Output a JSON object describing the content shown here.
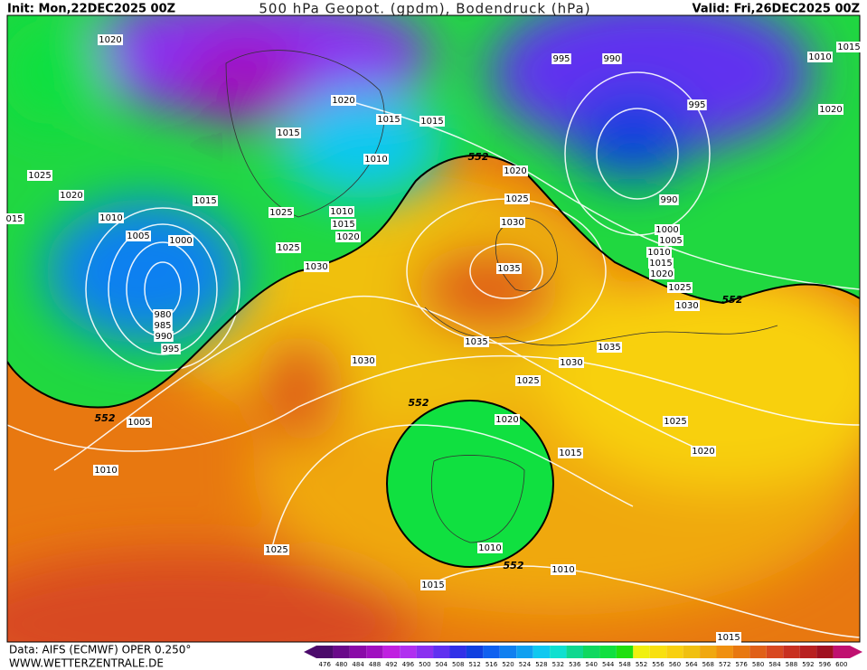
{
  "header": {
    "init": "Init: Mon,22DEC2025 00Z",
    "title": "500 hPa Geopot. (gpdm), Bodendruck (hPa)",
    "valid": "Valid: Fri,26DEC2025 00Z"
  },
  "footer": {
    "data": "Data: AIFS (ECMWF) OPER 0.250°",
    "site": "WWW.WETTERZENTRALE.DE"
  },
  "colorbar": {
    "labels": [
      476,
      480,
      484,
      488,
      492,
      496,
      500,
      504,
      508,
      512,
      516,
      520,
      524,
      528,
      532,
      536,
      540,
      544,
      548,
      552,
      556,
      560,
      564,
      568,
      572,
      576,
      580,
      584,
      588,
      592,
      596,
      600
    ],
    "colors": [
      "#4b0a6b",
      "#6a0a8a",
      "#8a0aa8",
      "#a010c0",
      "#c020e0",
      "#b030f0",
      "#8a30f0",
      "#6030f0",
      "#3030e8",
      "#1040e0",
      "#1060f0",
      "#1080f0",
      "#10a0f0",
      "#10c8f0",
      "#10e0d0",
      "#10d890",
      "#10d860",
      "#10e040",
      "#20e010",
      "#f0f010",
      "#f8e010",
      "#f8d010",
      "#f0c010",
      "#f0a810",
      "#f09010",
      "#e87810",
      "#e06018",
      "#d84820",
      "#c83020",
      "#b82020",
      "#a01020",
      "#c01070"
    ]
  },
  "map": {
    "isobar_labels": [
      "1020",
      "1025",
      "1020",
      "015",
      "1010",
      "1005",
      "1000",
      "980",
      "985",
      "990",
      "995",
      "1015",
      "1015",
      "1020",
      "1015",
      "1015",
      "1010",
      "1025",
      "1010",
      "1015",
      "1020",
      "1025",
      "1030",
      "995",
      "990",
      "995",
      "1010",
      "1015",
      "1020",
      "990",
      "1020",
      "1025",
      "1030",
      "1035",
      "1000",
      "1005",
      "1010",
      "1015",
      "1020",
      "1025",
      "1030",
      "1035",
      "1035",
      "1030",
      "1030",
      "1025",
      "1020",
      "1025",
      "1020",
      "1015",
      "1005",
      "1010",
      "1025",
      "1010",
      "1015",
      "1010",
      "1015"
    ],
    "height_labels": [
      "552",
      "552",
      "552",
      "552",
      "552"
    ]
  }
}
